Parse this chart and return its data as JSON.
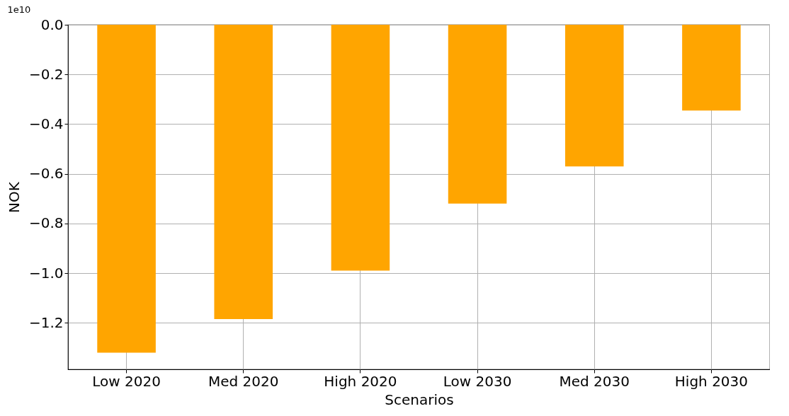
{
  "chart_data": {
    "type": "bar",
    "xlabel": "Scenarios",
    "ylabel": "NOK",
    "categories": [
      "Low 2020",
      "Med 2020",
      "High 2020",
      "Low 2030",
      "Med 2030",
      "High 2030"
    ],
    "values": [
      -1.32,
      -1.185,
      -0.99,
      -0.72,
      -0.57,
      -0.345
    ],
    "color": "#ffa500",
    "ylim": [
      -1.387,
      0
    ],
    "yticks": [
      {
        "value": -1.2,
        "label": "−1.2"
      },
      {
        "value": -1.0,
        "label": "−1.0"
      },
      {
        "value": -0.8,
        "label": "−0.8"
      },
      {
        "value": -0.6,
        "label": "−0.6"
      },
      {
        "value": -0.4,
        "label": "−0.4"
      },
      {
        "value": -0.2,
        "label": "−0.2"
      },
      {
        "value": 0,
        "label": "0.0"
      }
    ],
    "grid": true,
    "annotations": [
      "1e10"
    ]
  }
}
